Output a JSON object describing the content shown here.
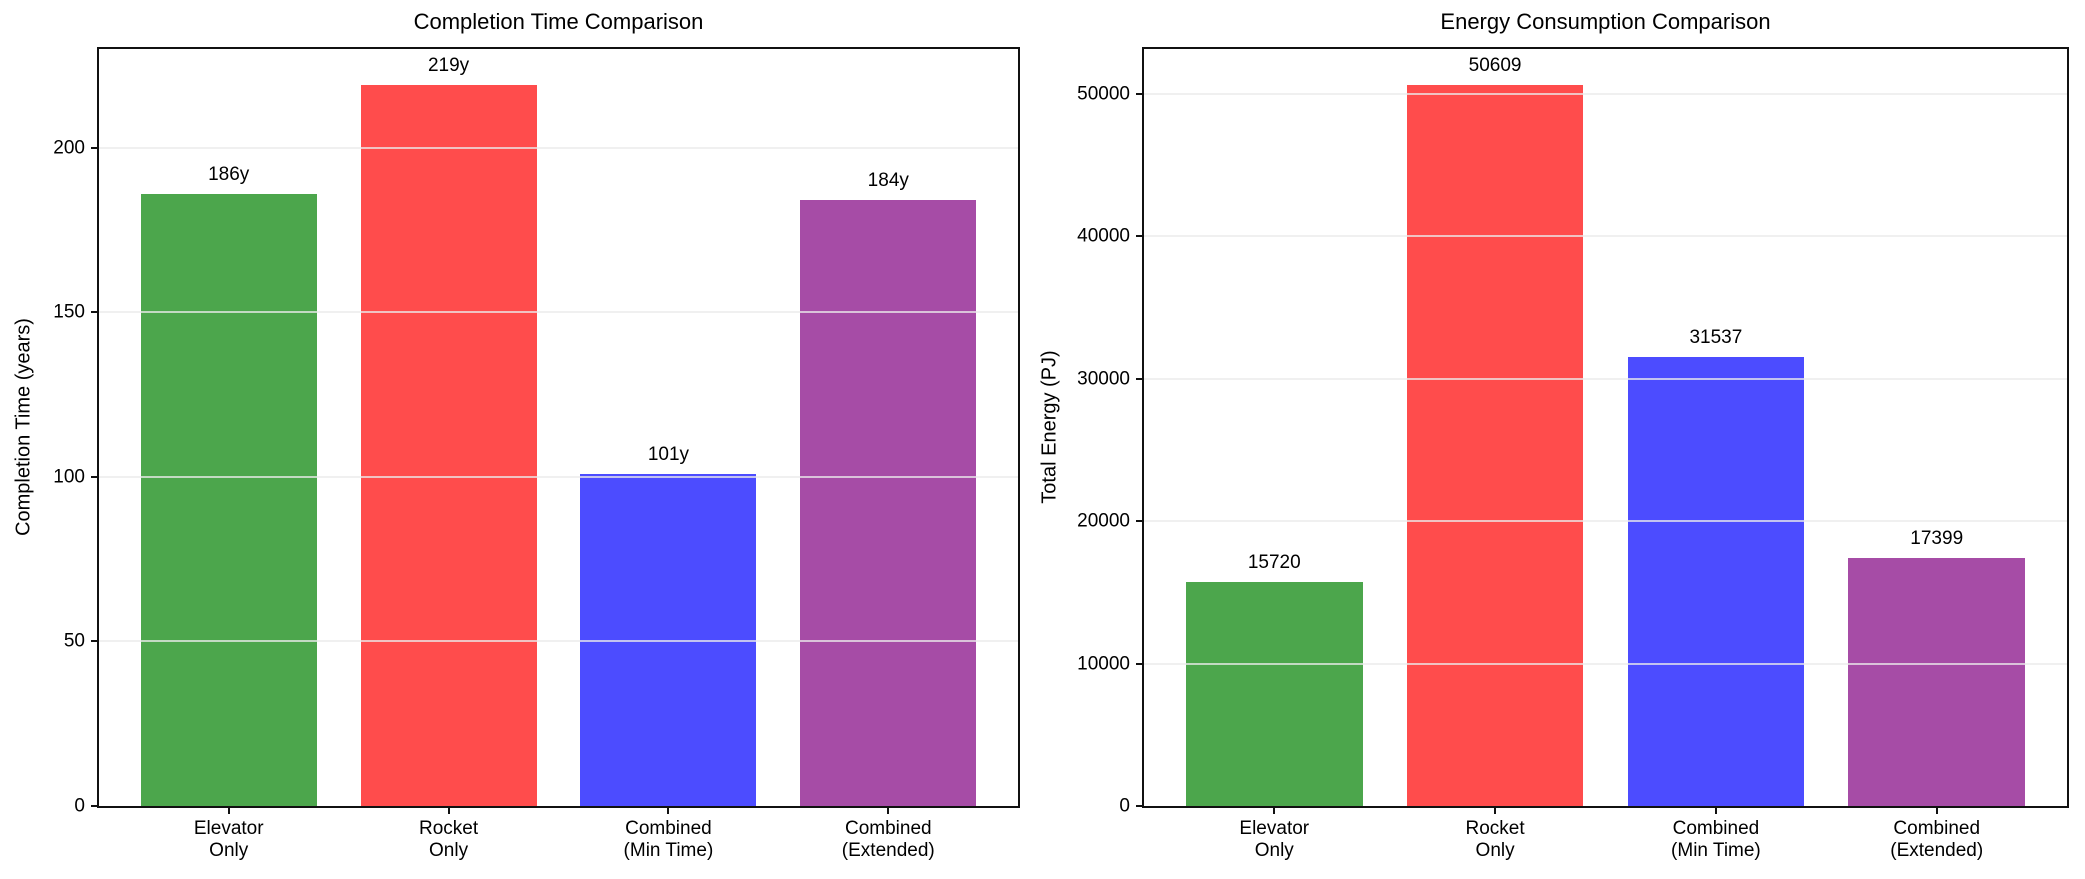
{
  "figure": {
    "background_color": "#ffffff",
    "axis_color": "#111111",
    "grid_color": "#ebebeb",
    "text_color": "#000000"
  },
  "chart_data": [
    {
      "type": "bar",
      "title": "Completion Time Comparison",
      "xlabel": "",
      "ylabel": "Completion Time (years)",
      "categories": [
        "Elevator\nOnly",
        "Rocket\nOnly",
        "Combined\n(Min Time)",
        "Combined\n(Extended)"
      ],
      "values": [
        186,
        219,
        101,
        184
      ],
      "bar_labels": [
        "186y",
        "219y",
        "101y",
        "184y"
      ],
      "bar_colors": [
        "#4CA64C",
        "#FF4C4C",
        "#4C4CFF",
        "#A64CA6"
      ],
      "yticks": [
        0,
        50,
        100,
        150,
        200
      ],
      "ylim": [
        0,
        230
      ],
      "xlim_pad": 0.59,
      "bar_width": 0.8,
      "grid": true,
      "legend": null
    },
    {
      "type": "bar",
      "title": "Energy Consumption Comparison",
      "xlabel": "",
      "ylabel": "Total Energy (PJ)",
      "categories": [
        "Elevator\nOnly",
        "Rocket\nOnly",
        "Combined\n(Min Time)",
        "Combined\n(Extended)"
      ],
      "values": [
        15720,
        50609,
        31537,
        17399
      ],
      "bar_labels": [
        "15720",
        "50609",
        "31537",
        "17399"
      ],
      "bar_colors": [
        "#4CA64C",
        "#FF4C4C",
        "#4C4CFF",
        "#A64CA6"
      ],
      "yticks": [
        0,
        10000,
        20000,
        30000,
        40000,
        50000
      ],
      "ylim": [
        0,
        53139
      ],
      "xlim_pad": 0.59,
      "bar_width": 0.8,
      "grid": true,
      "legend": null
    }
  ]
}
